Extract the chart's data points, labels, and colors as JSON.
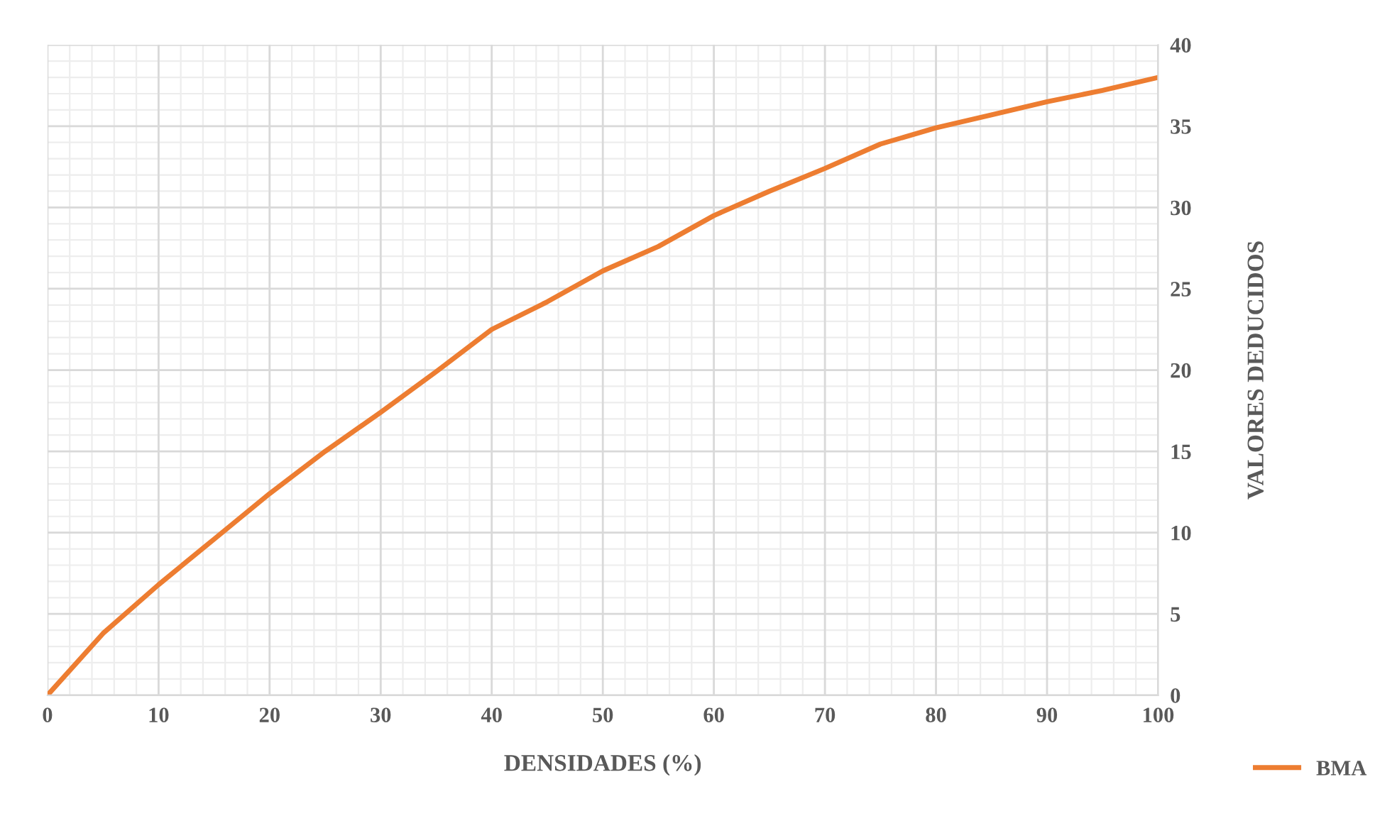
{
  "chart_data": {
    "type": "line",
    "xlabel": "DENSIDADES (%)",
    "ylabel": "VALORES DEDUCIDOS",
    "xlim": [
      0,
      100
    ],
    "xticks": [
      0,
      10,
      20,
      30,
      40,
      50,
      60,
      70,
      80,
      90,
      100
    ],
    "ylim": [
      0,
      40
    ],
    "yticks": [
      0,
      5,
      10,
      15,
      20,
      25,
      30,
      35,
      40
    ],
    "grid": true,
    "legend": "bottom right",
    "marker": "none",
    "line_style": "solid",
    "series": [
      {
        "name": "BMA",
        "color": "#ed7d31",
        "x": [
          0,
          5,
          10,
          15,
          20,
          25,
          30,
          35,
          40,
          45,
          50,
          55,
          60,
          65,
          70,
          75,
          80,
          85,
          90,
          95,
          100
        ],
        "values": [
          0,
          3.8,
          6.8,
          9.6,
          12.4,
          15.0,
          17.4,
          19.9,
          22.5,
          24.2,
          26.1,
          27.6,
          29.5,
          31.0,
          32.4,
          33.9,
          34.9,
          35.7,
          36.5,
          37.2,
          38.0
        ]
      }
    ]
  }
}
